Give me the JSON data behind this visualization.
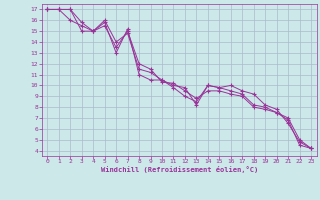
{
  "bg_color": "#cce8e8",
  "grid_color": "#aabbcc",
  "line_color": "#993399",
  "xlabel": "Windchill (Refroidissement éolien,°C)",
  "xlabel_color": "#993399",
  "tick_color": "#993399",
  "xlim": [
    -0.5,
    23.5
  ],
  "ylim": [
    3.5,
    17.5
  ],
  "yticks": [
    4,
    5,
    6,
    7,
    8,
    9,
    10,
    11,
    12,
    13,
    14,
    15,
    16,
    17
  ],
  "xticks": [
    0,
    1,
    2,
    3,
    4,
    5,
    6,
    7,
    8,
    9,
    10,
    11,
    12,
    13,
    14,
    15,
    16,
    17,
    18,
    19,
    20,
    21,
    22,
    23
  ],
  "series1": {
    "x": [
      0,
      1,
      2,
      3,
      4,
      5,
      6,
      7,
      8,
      9,
      10,
      11,
      12,
      13,
      14,
      15,
      16,
      17,
      18,
      19,
      20,
      21,
      22,
      23
    ],
    "y": [
      17,
      17,
      17,
      15.8,
      15.0,
      16.0,
      14.0,
      14.8,
      11.5,
      11.2,
      10.5,
      9.8,
      9.0,
      8.5,
      10.0,
      9.8,
      9.5,
      9.2,
      8.2,
      8.0,
      7.5,
      6.8,
      4.5,
      4.2
    ]
  },
  "series2": {
    "x": [
      0,
      1,
      2,
      3,
      4,
      5,
      6,
      7,
      8,
      9,
      10,
      11,
      12,
      13,
      14,
      15,
      16,
      17,
      18,
      19,
      20,
      21,
      22,
      23
    ],
    "y": [
      17,
      17,
      17,
      15.0,
      15.0,
      15.5,
      13.5,
      15.0,
      12.0,
      11.5,
      10.3,
      10.2,
      9.5,
      8.8,
      9.5,
      9.5,
      9.2,
      9.0,
      8.0,
      7.8,
      7.5,
      7.0,
      5.0,
      4.2
    ]
  },
  "series3": {
    "x": [
      0,
      1,
      2,
      3,
      4,
      5,
      6,
      7,
      8,
      9,
      10,
      11,
      12,
      13,
      14,
      15,
      16,
      17,
      18,
      19,
      20,
      21,
      22,
      23
    ],
    "y": [
      17,
      17,
      16.0,
      15.5,
      15.0,
      15.8,
      13.0,
      15.2,
      11.0,
      10.5,
      10.5,
      10.0,
      9.8,
      8.2,
      10.0,
      9.8,
      10.0,
      9.5,
      9.2,
      8.2,
      7.8,
      6.5,
      4.8,
      4.2
    ]
  }
}
